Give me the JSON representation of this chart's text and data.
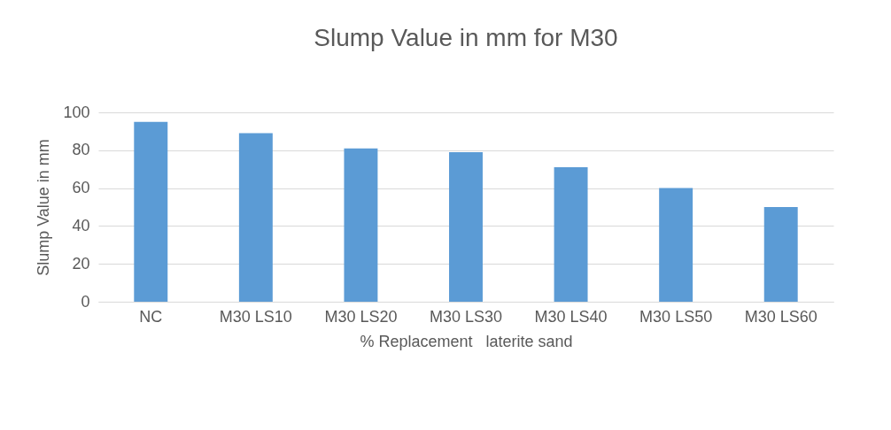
{
  "chart_data": {
    "type": "bar",
    "title": "Slump Value in mm for M30",
    "xlabel": "% Replacement   laterite sand",
    "ylabel": "Slump Value in mm",
    "categories": [
      "NC",
      "M30 LS10",
      "M30 LS20",
      "M30 LS30",
      "M30 LS40",
      "M30 LS50",
      "M30 LS60"
    ],
    "values": [
      95,
      89,
      81,
      79,
      71,
      60,
      50
    ],
    "color": "#5b9bd5",
    "ylim": [
      0,
      100
    ],
    "yticks": [
      0,
      20,
      40,
      60,
      80,
      100
    ],
    "grid": "y"
  }
}
